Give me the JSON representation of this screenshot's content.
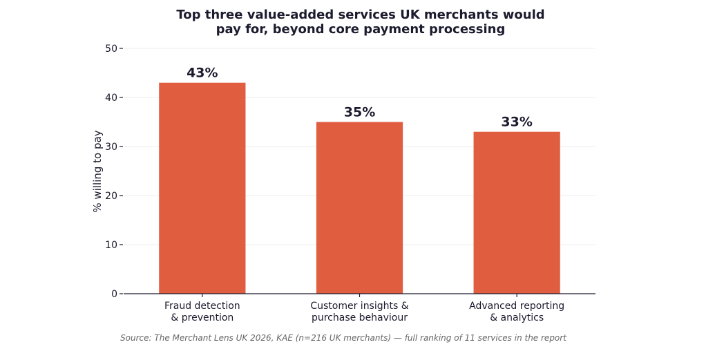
{
  "chart_data": {
    "type": "bar",
    "title": [
      "Top three value-added services UK merchants would",
      "pay for, beyond core payment processing"
    ],
    "categories": [
      [
        "Fraud detection",
        "& prevention"
      ],
      [
        "Customer insights &",
        "purchase behaviour"
      ],
      [
        "Advanced reporting",
        "& analytics"
      ]
    ],
    "values": [
      43,
      35,
      33
    ],
    "data_labels": [
      "43%",
      "35%",
      "33%"
    ],
    "ylabel": "% willing to pay",
    "xlabel": "",
    "ylim": [
      0,
      50
    ],
    "yticks": [
      0,
      10,
      20,
      30,
      40,
      50
    ],
    "ytick_labels": [
      "0",
      "10",
      "20",
      "30",
      "40",
      "50"
    ],
    "grid": true,
    "bar_color": "#e05d40",
    "text_color": "#1c1b2e",
    "grid_color": "#eeeeee"
  },
  "source_note": "Source: The Merchant Lens UK 2026, KAE (n=216 UK merchants) — full ranking of 11 services in the report"
}
